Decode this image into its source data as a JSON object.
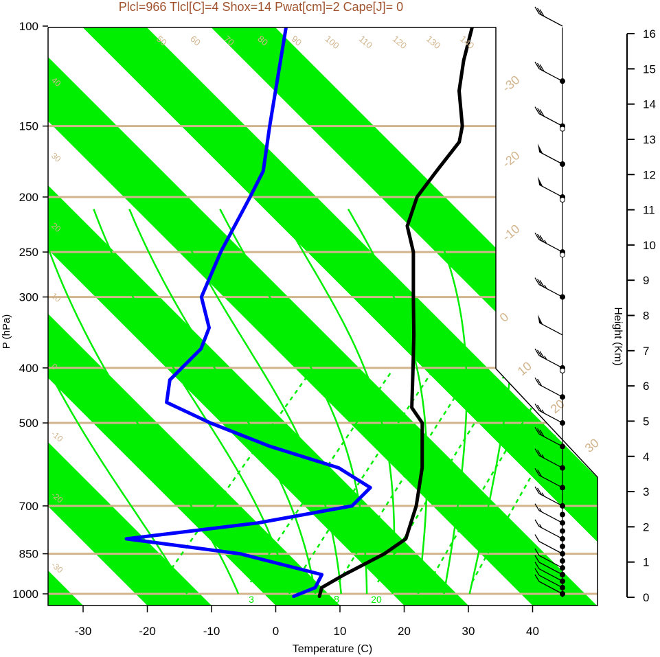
{
  "title": "Plcl=966 Tlcl[C]=4 Shox=14 Pwat[cm]=2 Cape[J]= 0",
  "colors": {
    "title": "#a0522d",
    "isotherm_band": "#00ee00",
    "dry_adiabat": "#d2b48c",
    "moist_adiabat": "#00ee00",
    "mixing_ratio": "#00ee00",
    "temperature": "#000000",
    "dewpoint": "#0000ff",
    "frame": "#000000"
  },
  "chart_data": {
    "type": "skew-t log-p",
    "xlabel": "Temperature (C)",
    "ylabel": "P (hPa)",
    "height_axis_label": "Height (Km)",
    "x_ticks": [
      "-30",
      "-20",
      "-10",
      "0",
      "10",
      "20",
      "30",
      "40"
    ],
    "x_tick_values": [
      -30,
      -20,
      -10,
      0,
      10,
      20,
      30,
      40
    ],
    "p_ticks": [
      100,
      150,
      200,
      250,
      300,
      400,
      500,
      700,
      850,
      1000
    ],
    "p_tick_labels": [
      "100",
      "150",
      "200",
      "250",
      "300",
      "400",
      "500",
      "700",
      "850",
      "1000"
    ],
    "height_ticks": [
      "0",
      "1",
      "2",
      "3",
      "4",
      "5",
      "6",
      "7",
      "8",
      "9",
      "10",
      "11",
      "12",
      "13",
      "14",
      "15",
      "16"
    ],
    "theta_labels_top": [
      "50",
      "60",
      "70",
      "80",
      "90",
      "100",
      "110",
      "120",
      "130",
      "140",
      "150",
      "160"
    ],
    "theta_labels_right": [
      "-30",
      "-20",
      "-10",
      "0",
      "10",
      "20",
      "30"
    ],
    "theta_labels_left": [
      "40",
      "30",
      "20",
      "10",
      "0",
      "-10",
      "-20",
      "-30"
    ],
    "moist_adiabat_labels": [
      "8",
      "16",
      "24",
      "32"
    ],
    "mixing_ratio_labels": [
      "3",
      "8",
      "20"
    ],
    "temperature_profile": [
      {
        "p": 1010,
        "t": 9
      },
      {
        "p": 975,
        "t": 8
      },
      {
        "p": 925,
        "t": 9.5
      },
      {
        "p": 850,
        "t": 12.5
      },
      {
        "p": 800,
        "t": 13.5
      },
      {
        "p": 700,
        "t": 10
      },
      {
        "p": 600,
        "t": 5
      },
      {
        "p": 500,
        "t": -2
      },
      {
        "p": 470,
        "t": -6
      },
      {
        "p": 400,
        "t": -12
      },
      {
        "p": 350,
        "t": -17
      },
      {
        "p": 300,
        "t": -23
      },
      {
        "p": 250,
        "t": -30
      },
      {
        "p": 225,
        "t": -35
      },
      {
        "p": 200,
        "t": -38
      },
      {
        "p": 180,
        "t": -39
      },
      {
        "p": 160,
        "t": -40
      },
      {
        "p": 150,
        "t": -42
      },
      {
        "p": 130,
        "t": -48
      },
      {
        "p": 115,
        "t": -52
      },
      {
        "p": 100,
        "t": -56
      }
    ],
    "dewpoint_profile": [
      {
        "p": 1010,
        "t": 5
      },
      {
        "p": 975,
        "t": 7
      },
      {
        "p": 925,
        "t": 6
      },
      {
        "p": 850,
        "t": -10
      },
      {
        "p": 800,
        "t": -30
      },
      {
        "p": 750,
        "t": -12
      },
      {
        "p": 700,
        "t": 0
      },
      {
        "p": 650,
        "t": 0
      },
      {
        "p": 600,
        "t": -8
      },
      {
        "p": 550,
        "t": -22
      },
      {
        "p": 500,
        "t": -35
      },
      {
        "p": 460,
        "t": -45
      },
      {
        "p": 420,
        "t": -48
      },
      {
        "p": 400,
        "t": -48
      },
      {
        "p": 370,
        "t": -48
      },
      {
        "p": 340,
        "t": -50
      },
      {
        "p": 300,
        "t": -56
      },
      {
        "p": 250,
        "t": -60
      },
      {
        "p": 200,
        "t": -64
      },
      {
        "p": 180,
        "t": -66
      },
      {
        "p": 150,
        "t": -72
      },
      {
        "p": 100,
        "t": -85
      }
    ],
    "wind_barbs": [
      {
        "p": 1000,
        "speed": 10
      },
      {
        "p": 975,
        "speed": 10
      },
      {
        "p": 950,
        "speed": 10
      },
      {
        "p": 925,
        "speed": 10
      },
      {
        "p": 900,
        "speed": 10
      },
      {
        "p": 850,
        "speed": 10
      },
      {
        "p": 800,
        "speed": 15
      },
      {
        "p": 750,
        "speed": 15
      },
      {
        "p": 700,
        "speed": 25
      },
      {
        "p": 650,
        "speed": 20
      },
      {
        "p": 600,
        "speed": 25
      },
      {
        "p": 550,
        "speed": 30
      },
      {
        "p": 500,
        "speed": 25
      },
      {
        "p": 450,
        "speed": 20
      },
      {
        "p": 400,
        "speed": 35
      },
      {
        "p": 350,
        "speed": 50
      },
      {
        "p": 300,
        "speed": 35
      },
      {
        "p": 250,
        "speed": 35
      },
      {
        "p": 200,
        "speed": 50
      },
      {
        "p": 175,
        "speed": 50
      },
      {
        "p": 150,
        "speed": 30
      },
      {
        "p": 125,
        "speed": 30
      },
      {
        "p": 100,
        "speed": 30
      }
    ],
    "wind_dots_filled": [
      1000,
      975,
      950,
      925,
      900,
      875,
      850,
      825,
      800,
      775,
      750,
      725,
      700,
      650,
      600,
      550,
      500,
      450,
      400,
      300,
      250,
      200,
      175,
      150,
      125
    ],
    "wind_dots_open": [
      400,
      250,
      200,
      150
    ]
  }
}
